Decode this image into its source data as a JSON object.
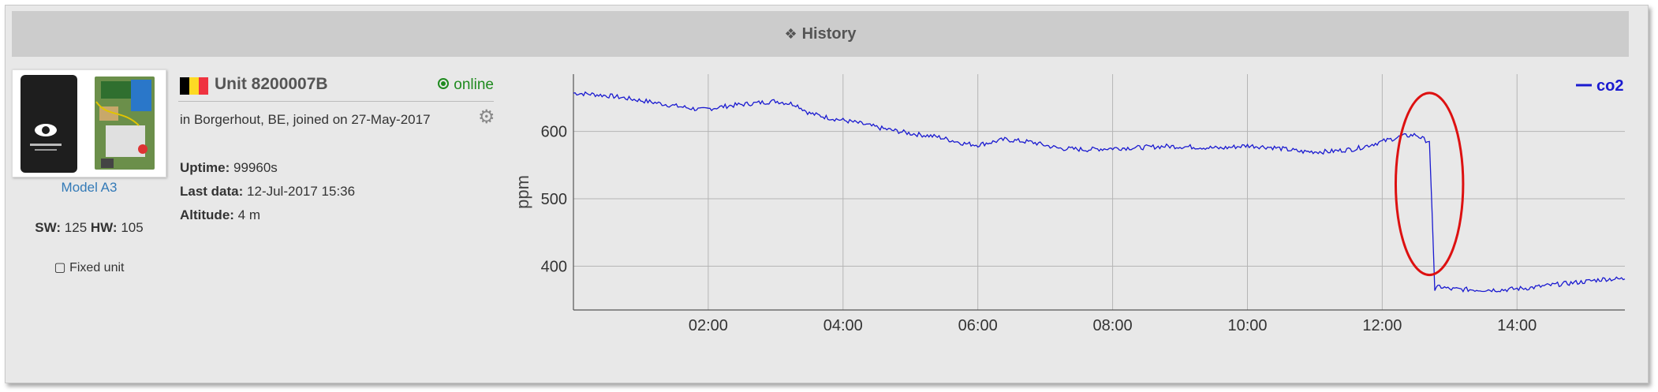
{
  "panel": {
    "title": "History",
    "title_icon": "❖"
  },
  "device": {
    "image_alt": "device-photo",
    "model_label": "Model A3",
    "sw_label": "SW:",
    "sw_value": "125",
    "hw_label": "HW:",
    "hw_value": "105",
    "fixed_label": "Fixed unit",
    "fixed_checked": false
  },
  "unit": {
    "flag_colors": [
      "#000000",
      "#FDDA24",
      "#EF3340"
    ],
    "title": "Unit 8200007B",
    "status": "online",
    "status_color": "#1f8a1f",
    "location": "in Borgerhout, BE, joined on 27-May-2017",
    "uptime_label": "Uptime:",
    "uptime_value": "99960s",
    "lastdata_label": "Last data:",
    "lastdata_value": "12-Jul-2017 15:36",
    "altitude_label": "Altitude:",
    "altitude_value": "4 m"
  },
  "chart_data": {
    "type": "line",
    "title": "",
    "xlabel": "",
    "ylabel": "ppm",
    "x_unit": "hours",
    "xlim": [
      0.0,
      15.6
    ],
    "ylim": [
      335,
      685
    ],
    "xticks": [
      2,
      4,
      6,
      8,
      10,
      12,
      14
    ],
    "xtick_labels": [
      "02:00",
      "04:00",
      "06:00",
      "08:00",
      "10:00",
      "12:00",
      "14:00"
    ],
    "yticks": [
      400,
      500,
      600
    ],
    "ytick_labels": [
      "400",
      "500",
      "600"
    ],
    "grid": true,
    "legend_position": "top-right",
    "series": [
      {
        "name": "co2",
        "color": "#1a1ad0",
        "x": [
          0.0,
          0.3,
          0.6,
          1.0,
          1.5,
          1.9,
          2.3,
          2.7,
          3.0,
          3.3,
          3.5,
          3.8,
          4.2,
          4.6,
          5.0,
          5.4,
          5.8,
          6.0,
          6.4,
          6.8,
          7.2,
          7.6,
          8.0,
          8.4,
          8.8,
          9.2,
          9.6,
          10.0,
          10.4,
          10.8,
          11.2,
          11.6,
          12.0,
          12.3,
          12.5,
          12.62,
          12.7,
          12.74,
          12.78,
          12.85,
          13.0,
          13.4,
          13.8,
          14.2,
          14.6,
          15.0,
          15.3,
          15.6
        ],
        "y": [
          657,
          655,
          652,
          646,
          638,
          632,
          638,
          642,
          645,
          640,
          627,
          620,
          613,
          604,
          597,
          592,
          582,
          580,
          588,
          584,
          575,
          573,
          575,
          576,
          578,
          577,
          575,
          579,
          576,
          570,
          570,
          574,
          585,
          593,
          595,
          588,
          585,
          480,
          365,
          370,
          366,
          365,
          365,
          368,
          373,
          377,
          381,
          381
        ]
      }
    ],
    "annotation": {
      "shape": "ellipse",
      "color": "#dd1111",
      "center_x": 12.7,
      "center_y": 522,
      "radius_x_hours": 0.5,
      "radius_y_ppm": 135
    }
  }
}
